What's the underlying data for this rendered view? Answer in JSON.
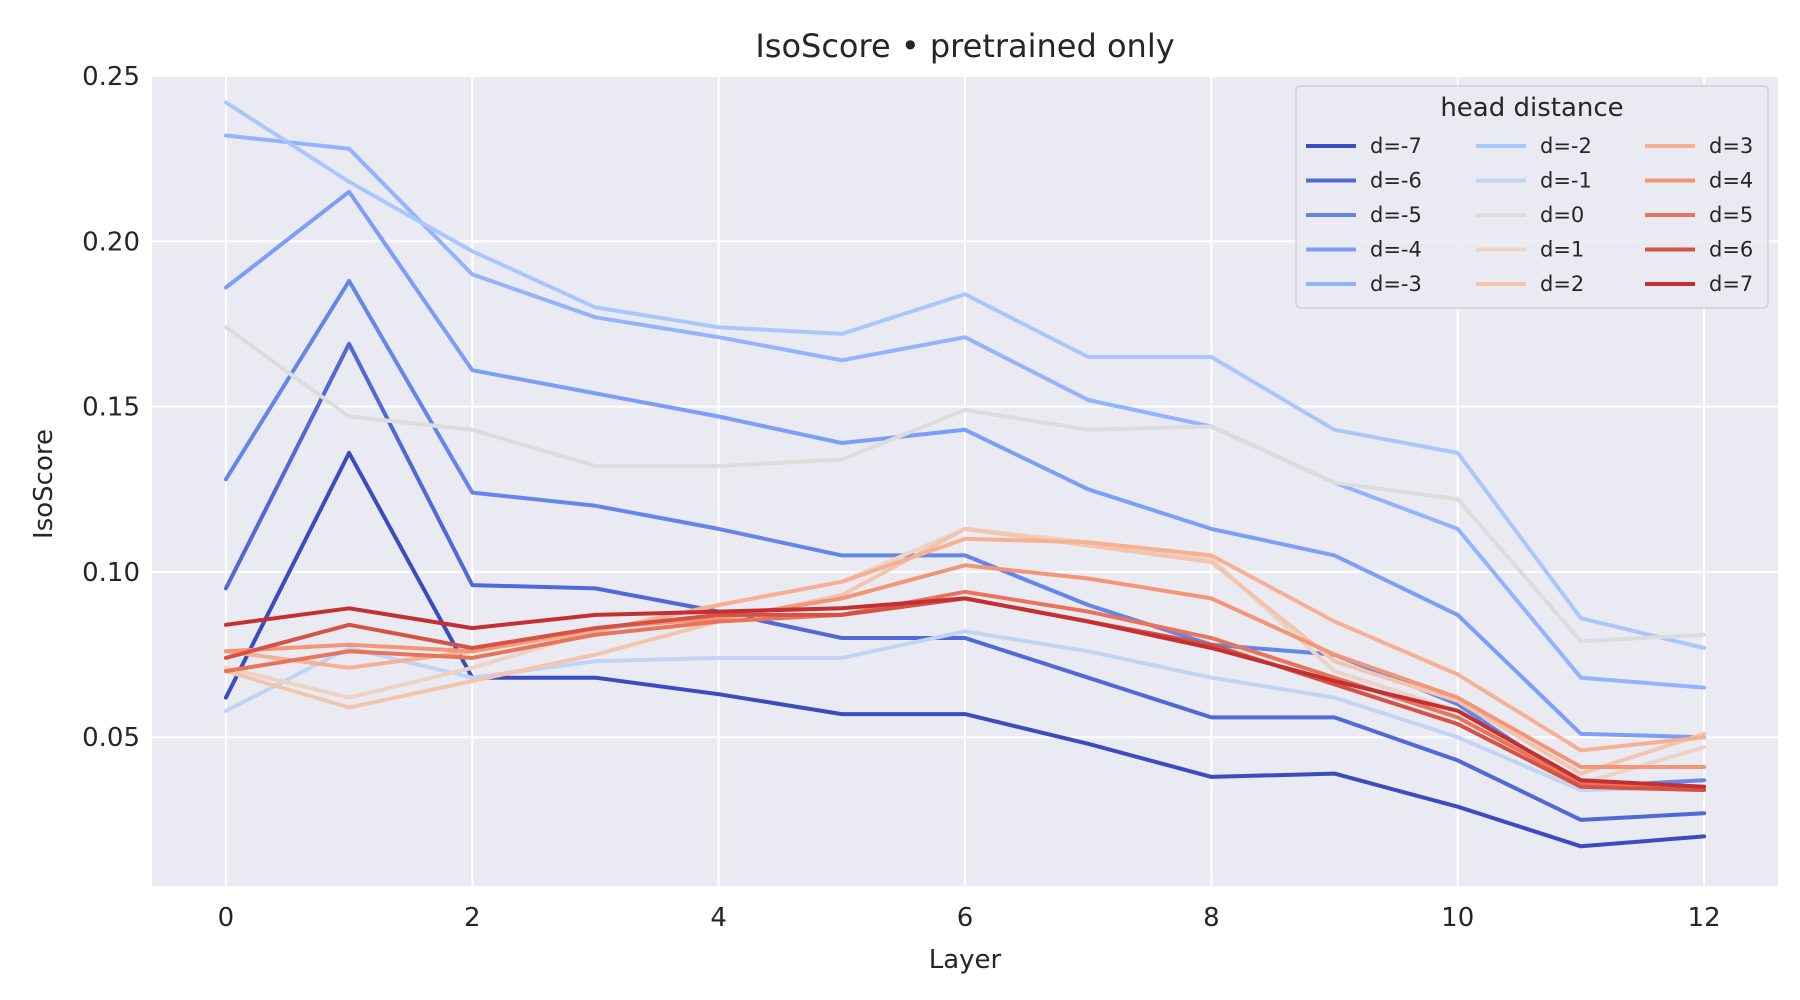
{
  "chart_data": {
    "type": "line",
    "title": "IsoScore • pretrained only",
    "xlabel": "Layer",
    "ylabel": "IsoScore",
    "x": [
      0,
      1,
      2,
      3,
      4,
      5,
      6,
      7,
      8,
      9,
      10,
      11,
      12
    ],
    "xlim": [
      -0.6,
      12.6
    ],
    "ylim": [
      0.005,
      0.25
    ],
    "xticks": [
      0,
      2,
      4,
      6,
      8,
      10,
      12
    ],
    "yticks": [
      0.05,
      0.1,
      0.15,
      0.2,
      0.25
    ],
    "ytick_labels": [
      "0.05",
      "0.10",
      "0.15",
      "0.20",
      "0.25"
    ],
    "grid": true,
    "legend": {
      "title": "head distance",
      "placement": "top-right",
      "columns": 3
    },
    "series": [
      {
        "name": "d=-7",
        "color": "#3b4cc0",
        "values": [
          0.062,
          0.136,
          0.068,
          0.068,
          0.063,
          0.057,
          0.057,
          0.048,
          0.038,
          0.039,
          0.029,
          0.017,
          0.02
        ]
      },
      {
        "name": "d=-6",
        "color": "#4f69d9",
        "values": [
          0.095,
          0.169,
          0.096,
          0.095,
          0.088,
          0.08,
          0.08,
          0.068,
          0.056,
          0.056,
          0.043,
          0.025,
          0.027
        ]
      },
      {
        "name": "d=-5",
        "color": "#6485ec",
        "values": [
          0.128,
          0.188,
          0.124,
          0.12,
          0.113,
          0.105,
          0.105,
          0.09,
          0.078,
          0.075,
          0.06,
          0.035,
          0.037
        ]
      },
      {
        "name": "d=-4",
        "color": "#7b9ff9",
        "values": [
          0.186,
          0.215,
          0.161,
          0.154,
          0.147,
          0.139,
          0.143,
          0.125,
          0.113,
          0.105,
          0.087,
          0.051,
          0.05
        ]
      },
      {
        "name": "d=-3",
        "color": "#92b4fe",
        "values": [
          0.232,
          0.228,
          0.19,
          0.177,
          0.171,
          0.164,
          0.171,
          0.152,
          0.144,
          0.127,
          0.113,
          0.068,
          0.065
        ]
      },
      {
        "name": "d=-2",
        "color": "#aac7fd",
        "values": [
          0.242,
          0.218,
          0.197,
          0.18,
          0.174,
          0.172,
          0.184,
          0.165,
          0.165,
          0.143,
          0.136,
          0.086,
          0.077
        ]
      },
      {
        "name": "d=-1",
        "color": "#c0d4f5",
        "values": [
          0.058,
          0.077,
          0.068,
          0.073,
          0.074,
          0.074,
          0.082,
          0.076,
          0.068,
          0.062,
          0.05,
          0.034,
          0.035
        ]
      },
      {
        "name": "d=0",
        "color": "#dddcdc",
        "values": [
          0.174,
          0.147,
          0.143,
          0.132,
          0.132,
          0.134,
          0.149,
          0.143,
          0.144,
          0.127,
          0.122,
          0.079,
          0.081
        ]
      },
      {
        "name": "d=1",
        "color": "#ecd3c5",
        "values": [
          0.071,
          0.062,
          0.071,
          0.082,
          0.09,
          0.097,
          0.113,
          0.109,
          0.104,
          0.07,
          0.058,
          0.036,
          0.047
        ]
      },
      {
        "name": "d=2",
        "color": "#f4c5ad",
        "values": [
          0.07,
          0.059,
          0.067,
          0.075,
          0.085,
          0.093,
          0.113,
          0.108,
          0.103,
          0.073,
          0.061,
          0.039,
          0.051
        ]
      },
      {
        "name": "d=3",
        "color": "#f7b093",
        "values": [
          0.076,
          0.071,
          0.076,
          0.082,
          0.09,
          0.097,
          0.11,
          0.109,
          0.105,
          0.085,
          0.069,
          0.046,
          0.05
        ]
      },
      {
        "name": "d=4",
        "color": "#f39577",
        "values": [
          0.076,
          0.078,
          0.076,
          0.083,
          0.086,
          0.092,
          0.102,
          0.098,
          0.092,
          0.075,
          0.062,
          0.041,
          0.041
        ]
      },
      {
        "name": "d=5",
        "color": "#e7745b",
        "values": [
          0.07,
          0.076,
          0.074,
          0.081,
          0.085,
          0.087,
          0.094,
          0.088,
          0.08,
          0.068,
          0.056,
          0.036,
          0.035
        ]
      },
      {
        "name": "d=6",
        "color": "#d65244",
        "values": [
          0.074,
          0.084,
          0.077,
          0.083,
          0.087,
          0.087,
          0.092,
          0.085,
          0.078,
          0.066,
          0.054,
          0.035,
          0.034
        ]
      },
      {
        "name": "d=7",
        "color": "#c43032",
        "values": [
          0.084,
          0.089,
          0.083,
          0.087,
          0.088,
          0.089,
          0.092,
          0.085,
          0.077,
          0.067,
          0.058,
          0.037,
          0.035
        ]
      }
    ]
  }
}
